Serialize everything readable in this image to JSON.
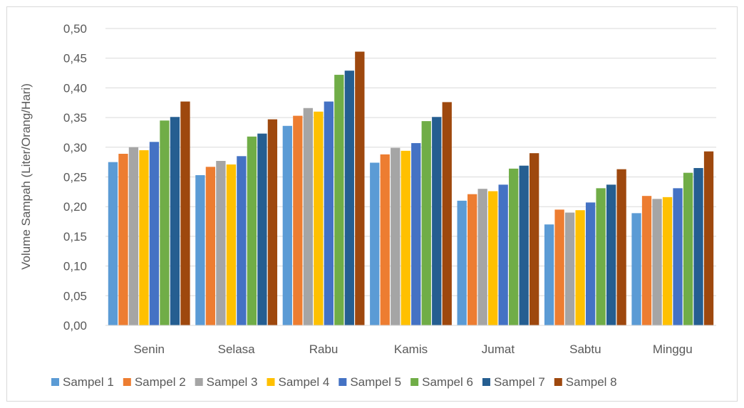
{
  "chart_data": {
    "type": "bar",
    "title": "",
    "xlabel": "",
    "ylabel": "Volume Sampah (Liter/Orang/Hari)",
    "ylim": [
      0,
      0.5
    ],
    "yticks": [
      "0,00",
      "0,05",
      "0,10",
      "0,15",
      "0,20",
      "0,25",
      "0,30",
      "0,35",
      "0,40",
      "0,45",
      "0,50"
    ],
    "grid": true,
    "legend_position": "bottom",
    "categories": [
      "Senin",
      "Selasa",
      "Rabu",
      "Kamis",
      "Jumat",
      "Sabtu",
      "Minggu"
    ],
    "series": [
      {
        "name": "Sampel 1",
        "color": "#5b9bd5",
        "values": [
          0.275,
          0.253,
          0.336,
          0.274,
          0.21,
          0.17,
          0.189
        ]
      },
      {
        "name": "Sampel 2",
        "color": "#ed7d31",
        "values": [
          0.289,
          0.267,
          0.353,
          0.288,
          0.221,
          0.195,
          0.218
        ]
      },
      {
        "name": "Sampel 3",
        "color": "#a5a5a5",
        "values": [
          0.3,
          0.277,
          0.366,
          0.299,
          0.23,
          0.19,
          0.213
        ]
      },
      {
        "name": "Sampel 4",
        "color": "#ffc000",
        "values": [
          0.295,
          0.271,
          0.36,
          0.294,
          0.226,
          0.194,
          0.216
        ]
      },
      {
        "name": "Sampel 5",
        "color": "#4472c4",
        "values": [
          0.309,
          0.285,
          0.377,
          0.307,
          0.237,
          0.207,
          0.231
        ]
      },
      {
        "name": "Sampel 6",
        "color": "#70ad47",
        "values": [
          0.345,
          0.318,
          0.422,
          0.344,
          0.264,
          0.231,
          0.257
        ]
      },
      {
        "name": "Sampel 7",
        "color": "#255e91",
        "values": [
          0.351,
          0.323,
          0.429,
          0.351,
          0.269,
          0.237,
          0.265
        ]
      },
      {
        "name": "Sampel 8",
        "color": "#9e480e",
        "values": [
          0.377,
          0.347,
          0.461,
          0.376,
          0.29,
          0.263,
          0.293
        ]
      }
    ]
  }
}
